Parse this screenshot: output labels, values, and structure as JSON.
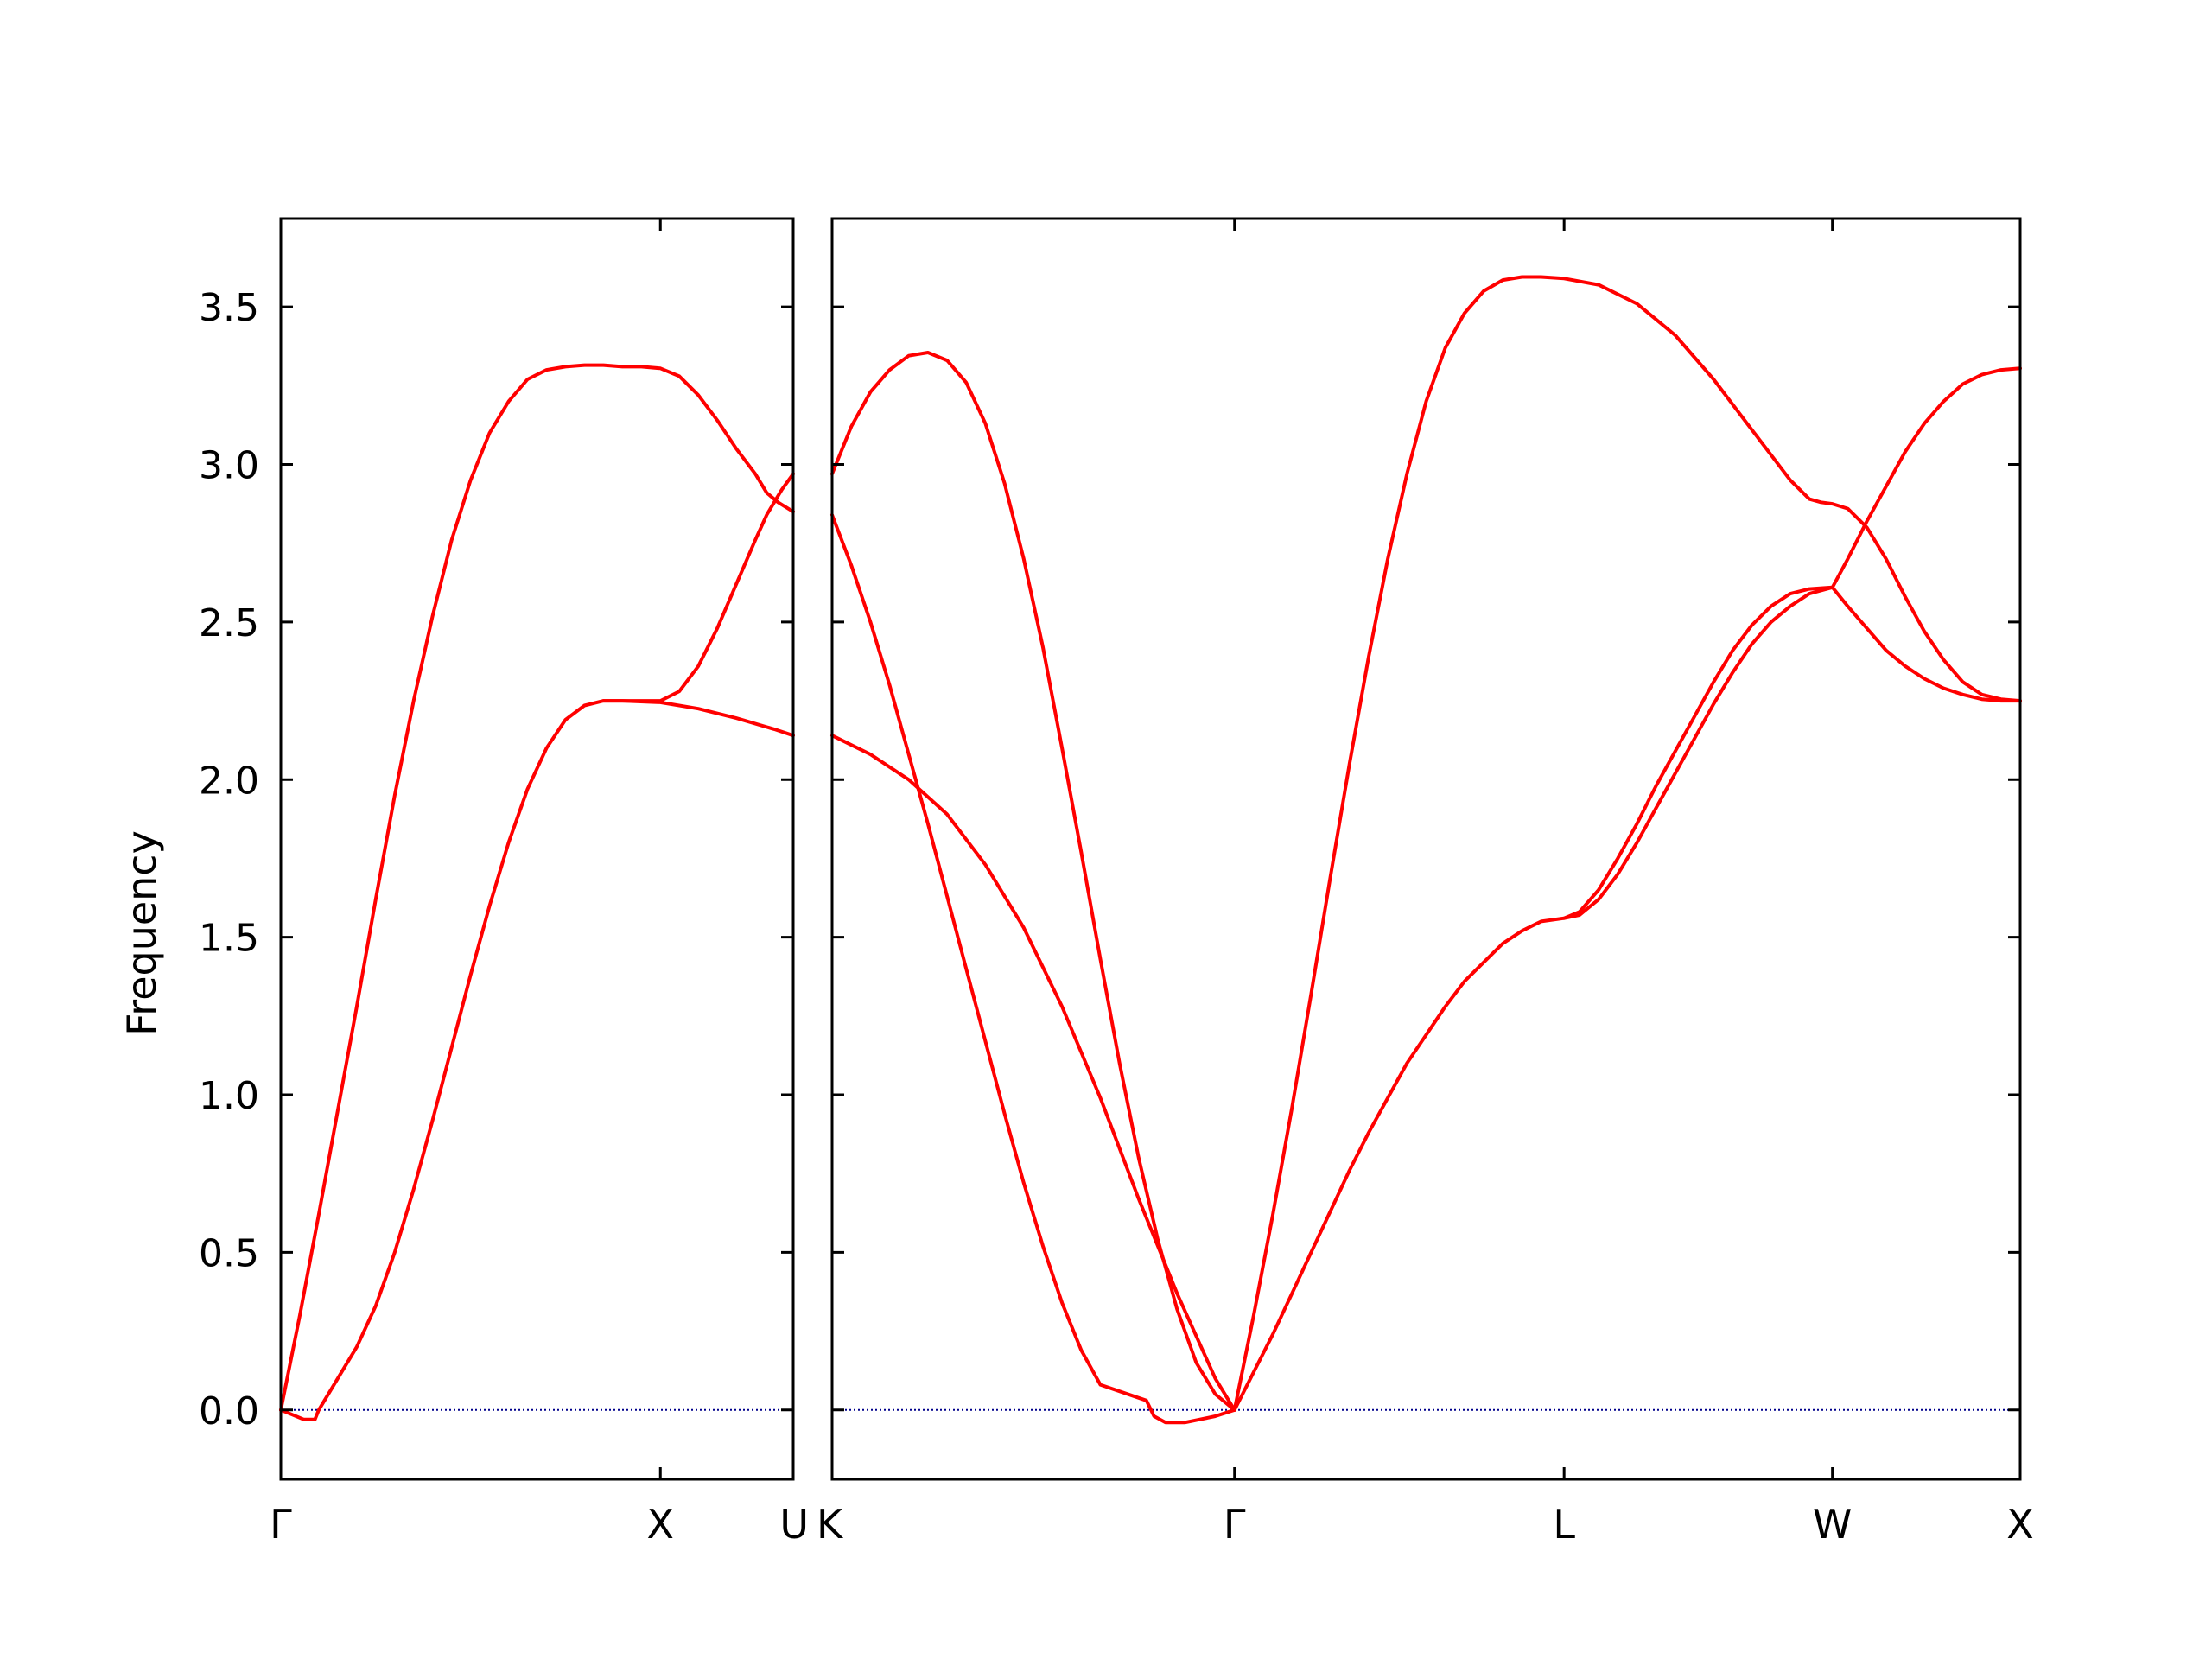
{
  "chart_data": {
    "type": "line",
    "ylabel": "Frequency",
    "ylim": [
      -0.22,
      3.78
    ],
    "yticks": [
      {
        "value": 0.0,
        "label": "0.0"
      },
      {
        "value": 0.5,
        "label": "0.5"
      },
      {
        "value": 1.0,
        "label": "1.0"
      },
      {
        "value": 1.5,
        "label": "1.5"
      },
      {
        "value": 2.0,
        "label": "2.0"
      },
      {
        "value": 2.5,
        "label": "2.5"
      },
      {
        "value": 3.0,
        "label": "3.0"
      },
      {
        "value": 3.5,
        "label": "3.5"
      }
    ],
    "line_color": "#ff0000",
    "zero_line_color": "#00008b",
    "grid": false,
    "panels": [
      {
        "name": "left",
        "xlim": [
          0,
          1.35
        ],
        "kpoints": [
          {
            "x": 0,
            "label": "Γ"
          },
          {
            "x": 1.0,
            "label": "X"
          },
          {
            "x": 1.35,
            "label": "U"
          }
        ],
        "series": [
          {
            "points": [
              [
                0,
                0.0
              ],
              [
                0.05,
                0.3
              ],
              [
                0.1,
                0.62
              ],
              [
                0.15,
                0.95
              ],
              [
                0.2,
                1.28
              ],
              [
                0.25,
                1.62
              ],
              [
                0.3,
                1.95
              ],
              [
                0.35,
                2.25
              ],
              [
                0.4,
                2.52
              ],
              [
                0.45,
                2.76
              ],
              [
                0.5,
                2.95
              ],
              [
                0.55,
                3.1
              ],
              [
                0.6,
                3.2
              ],
              [
                0.65,
                3.27
              ],
              [
                0.7,
                3.3
              ],
              [
                0.75,
                3.31
              ],
              [
                0.8,
                3.315
              ],
              [
                0.85,
                3.315
              ],
              [
                0.9,
                3.31
              ],
              [
                0.95,
                3.31
              ],
              [
                1.0,
                3.305
              ],
              [
                1.05,
                3.28
              ],
              [
                1.1,
                3.22
              ],
              [
                1.15,
                3.14
              ],
              [
                1.2,
                3.05
              ],
              [
                1.25,
                2.97
              ],
              [
                1.28,
                2.91
              ],
              [
                1.31,
                2.88
              ],
              [
                1.35,
                2.85
              ]
            ]
          },
          {
            "points": [
              [
                0,
                0.0
              ],
              [
                0.03,
                -0.015
              ],
              [
                0.06,
                -0.03
              ],
              [
                0.09,
                -0.03
              ],
              [
                0.1,
                0.0
              ],
              [
                0.12,
                0.04
              ],
              [
                0.15,
                0.1
              ],
              [
                0.2,
                0.2
              ],
              [
                0.25,
                0.33
              ],
              [
                0.3,
                0.5
              ],
              [
                0.35,
                0.7
              ],
              [
                0.4,
                0.92
              ],
              [
                0.45,
                1.15
              ],
              [
                0.5,
                1.38
              ],
              [
                0.55,
                1.6
              ],
              [
                0.6,
                1.8
              ],
              [
                0.65,
                1.97
              ],
              [
                0.7,
                2.1
              ],
              [
                0.75,
                2.19
              ],
              [
                0.8,
                2.235
              ],
              [
                0.85,
                2.25
              ],
              [
                0.9,
                2.25
              ],
              [
                1.0,
                2.25
              ],
              [
                1.05,
                2.28
              ],
              [
                1.1,
                2.36
              ],
              [
                1.15,
                2.48
              ],
              [
                1.2,
                2.62
              ],
              [
                1.25,
                2.76
              ],
              [
                1.28,
                2.84
              ],
              [
                1.3,
                2.88
              ],
              [
                1.32,
                2.92
              ],
              [
                1.35,
                2.97
              ]
            ]
          },
          {
            "points": [
              [
                0.85,
                2.25
              ],
              [
                0.9,
                2.25
              ],
              [
                1.0,
                2.245
              ],
              [
                1.1,
                2.225
              ],
              [
                1.2,
                2.195
              ],
              [
                1.3,
                2.16
              ],
              [
                1.35,
                2.14
              ]
            ]
          }
        ]
      },
      {
        "name": "right",
        "xlim": [
          0,
          3.1
        ],
        "kpoints": [
          {
            "x": 0,
            "label": "K"
          },
          {
            "x": 1.05,
            "label": "Γ"
          },
          {
            "x": 1.91,
            "label": "L"
          },
          {
            "x": 2.61,
            "label": "W"
          },
          {
            "x": 3.1,
            "label": "X"
          }
        ],
        "series": [
          {
            "points": [
              [
                0,
                2.97
              ],
              [
                0.05,
                3.12
              ],
              [
                0.1,
                3.23
              ],
              [
                0.15,
                3.3
              ],
              [
                0.2,
                3.345
              ],
              [
                0.25,
                3.355
              ],
              [
                0.3,
                3.33
              ],
              [
                0.35,
                3.26
              ],
              [
                0.4,
                3.13
              ],
              [
                0.45,
                2.94
              ],
              [
                0.5,
                2.7
              ],
              [
                0.55,
                2.42
              ],
              [
                0.6,
                2.1
              ],
              [
                0.65,
                1.77
              ],
              [
                0.7,
                1.43
              ],
              [
                0.75,
                1.1
              ],
              [
                0.8,
                0.8
              ],
              [
                0.85,
                0.54
              ],
              [
                0.9,
                0.32
              ],
              [
                0.95,
                0.15
              ],
              [
                1.0,
                0.05
              ],
              [
                1.05,
                0.0
              ]
            ]
          },
          {
            "points": [
              [
                0,
                2.84
              ],
              [
                0.05,
                2.68
              ],
              [
                0.1,
                2.5
              ],
              [
                0.15,
                2.3
              ],
              [
                0.2,
                2.08
              ],
              [
                0.25,
                1.86
              ],
              [
                0.3,
                1.63
              ],
              [
                0.35,
                1.4
              ],
              [
                0.4,
                1.17
              ],
              [
                0.45,
                0.94
              ],
              [
                0.5,
                0.72
              ],
              [
                0.55,
                0.52
              ],
              [
                0.6,
                0.34
              ],
              [
                0.65,
                0.19
              ],
              [
                0.7,
                0.08
              ],
              [
                0.82,
                0.03
              ],
              [
                0.84,
                -0.02
              ],
              [
                0.87,
                -0.04
              ],
              [
                0.92,
                -0.04
              ],
              [
                0.96,
                -0.03
              ],
              [
                1.0,
                -0.02
              ],
              [
                1.05,
                0.0
              ]
            ]
          },
          {
            "points": [
              [
                0,
                2.14
              ],
              [
                0.1,
                2.08
              ],
              [
                0.2,
                2.0
              ],
              [
                0.3,
                1.89
              ],
              [
                0.4,
                1.73
              ],
              [
                0.5,
                1.53
              ],
              [
                0.6,
                1.28
              ],
              [
                0.7,
                0.99
              ],
              [
                0.8,
                0.67
              ],
              [
                0.9,
                0.37
              ],
              [
                1.0,
                0.1
              ],
              [
                1.05,
                0.0
              ]
            ]
          },
          {
            "points": [
              [
                1.05,
                0.0
              ],
              [
                1.1,
                0.3
              ],
              [
                1.15,
                0.62
              ],
              [
                1.2,
                0.96
              ],
              [
                1.25,
                1.32
              ],
              [
                1.3,
                1.69
              ],
              [
                1.35,
                2.05
              ],
              [
                1.4,
                2.39
              ],
              [
                1.45,
                2.7
              ],
              [
                1.5,
                2.97
              ],
              [
                1.55,
                3.2
              ],
              [
                1.6,
                3.37
              ],
              [
                1.65,
                3.48
              ],
              [
                1.7,
                3.55
              ],
              [
                1.75,
                3.585
              ],
              [
                1.8,
                3.595
              ],
              [
                1.85,
                3.595
              ],
              [
                1.91,
                3.59
              ],
              [
                2.0,
                3.57
              ],
              [
                2.1,
                3.51
              ],
              [
                2.2,
                3.41
              ],
              [
                2.3,
                3.27
              ],
              [
                2.4,
                3.11
              ],
              [
                2.5,
                2.95
              ],
              [
                2.55,
                2.89
              ],
              [
                2.58,
                2.88
              ],
              [
                2.61,
                2.875
              ],
              [
                2.65,
                2.86
              ],
              [
                2.7,
                2.8
              ],
              [
                2.75,
                2.7
              ],
              [
                2.8,
                2.58
              ],
              [
                2.85,
                2.47
              ],
              [
                2.9,
                2.38
              ],
              [
                2.95,
                2.31
              ],
              [
                3.0,
                2.27
              ],
              [
                3.05,
                2.255
              ],
              [
                3.1,
                2.25
              ]
            ]
          },
          {
            "points": [
              [
                1.05,
                0.0
              ],
              [
                1.1,
                0.12
              ],
              [
                1.15,
                0.24
              ],
              [
                1.2,
                0.37
              ],
              [
                1.25,
                0.5
              ],
              [
                1.3,
                0.63
              ],
              [
                1.35,
                0.76
              ],
              [
                1.4,
                0.88
              ],
              [
                1.45,
                0.99
              ],
              [
                1.5,
                1.1
              ],
              [
                1.55,
                1.19
              ],
              [
                1.6,
                1.28
              ],
              [
                1.65,
                1.36
              ],
              [
                1.7,
                1.42
              ],
              [
                1.75,
                1.48
              ],
              [
                1.8,
                1.52
              ],
              [
                1.85,
                1.55
              ],
              [
                1.91,
                1.56
              ],
              [
                1.95,
                1.57
              ],
              [
                2.0,
                1.62
              ],
              [
                2.05,
                1.7
              ],
              [
                2.1,
                1.8
              ],
              [
                2.15,
                1.91
              ],
              [
                2.2,
                2.02
              ],
              [
                2.25,
                2.13
              ],
              [
                2.3,
                2.24
              ],
              [
                2.35,
                2.34
              ],
              [
                2.4,
                2.43
              ],
              [
                2.45,
                2.5
              ],
              [
                2.5,
                2.55
              ],
              [
                2.55,
                2.59
              ],
              [
                2.61,
                2.61
              ],
              [
                2.65,
                2.55
              ],
              [
                2.7,
                2.48
              ],
              [
                2.75,
                2.41
              ],
              [
                2.8,
                2.36
              ],
              [
                2.85,
                2.32
              ],
              [
                2.9,
                2.29
              ],
              [
                2.95,
                2.27
              ],
              [
                3.0,
                2.255
              ],
              [
                3.05,
                2.25
              ],
              [
                3.1,
                2.25
              ]
            ]
          },
          {
            "points": [
              [
                1.91,
                1.56
              ],
              [
                1.95,
                1.58
              ],
              [
                2.0,
                1.65
              ],
              [
                2.05,
                1.75
              ],
              [
                2.1,
                1.86
              ],
              [
                2.15,
                1.98
              ],
              [
                2.2,
                2.09
              ],
              [
                2.25,
                2.2
              ],
              [
                2.3,
                2.31
              ],
              [
                2.35,
                2.41
              ],
              [
                2.4,
                2.49
              ],
              [
                2.45,
                2.55
              ],
              [
                2.5,
                2.59
              ],
              [
                2.55,
                2.605
              ],
              [
                2.61,
                2.61
              ],
              [
                2.65,
                2.7
              ],
              [
                2.7,
                2.82
              ],
              [
                2.75,
                2.93
              ],
              [
                2.8,
                3.04
              ],
              [
                2.85,
                3.13
              ],
              [
                2.9,
                3.2
              ],
              [
                2.95,
                3.255
              ],
              [
                3.0,
                3.285
              ],
              [
                3.05,
                3.3
              ],
              [
                3.1,
                3.305
              ]
            ]
          }
        ]
      }
    ]
  }
}
